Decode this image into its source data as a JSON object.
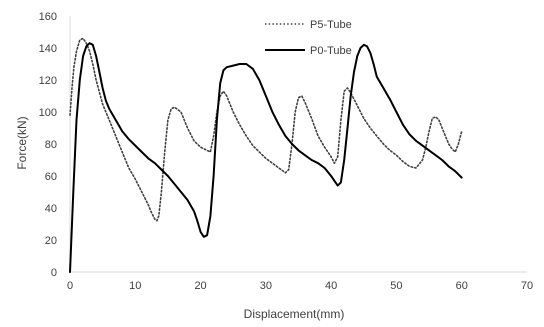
{
  "chart_data": {
    "type": "line",
    "xlabel": "Displacement(mm)",
    "ylabel": "Force(kN)",
    "xlim": [
      0,
      70
    ],
    "ylim": [
      0,
      160
    ],
    "xticks": [
      0,
      10,
      20,
      30,
      40,
      50,
      60,
      70
    ],
    "yticks": [
      0,
      20,
      40,
      60,
      80,
      100,
      120,
      140,
      160
    ],
    "grid": false,
    "legend_position": "top-right",
    "axis_color": "#d9d9d9",
    "series": [
      {
        "name": "P5-Tube",
        "style": "dotted",
        "color": "#404040",
        "x": [
          0,
          0.3,
          0.6,
          1.0,
          1.5,
          2.0,
          2.5,
          3.0,
          3.5,
          4.0,
          5.0,
          6.0,
          7.0,
          8.0,
          9.0,
          10.0,
          11.0,
          12.0,
          12.5,
          13.0,
          13.3,
          13.6,
          14.0,
          14.5,
          15.0,
          15.5,
          16.0,
          17.0,
          18.0,
          19.0,
          20.0,
          21.0,
          21.5,
          22.0,
          22.5,
          23.0,
          23.5,
          24.0,
          25.0,
          26.0,
          27.0,
          28.0,
          29.0,
          30.0,
          31.0,
          32.0,
          33.0,
          33.5,
          34.0,
          34.5,
          35.0,
          35.5,
          36.0,
          37.0,
          38.0,
          39.0,
          40.0,
          40.5,
          41.0,
          41.5,
          42.0,
          42.5,
          43.0,
          44.0,
          45.0,
          46.0,
          47.0,
          48.0,
          49.0,
          50.0,
          51.0,
          52.0,
          53.0,
          54.0,
          54.5,
          55.0,
          55.5,
          56.0,
          56.5,
          57.0,
          57.5,
          58.0,
          58.5,
          59.0,
          59.5,
          60.0
        ],
        "y": [
          98,
          115,
          128,
          138,
          145,
          146,
          143,
          138,
          130,
          120,
          105,
          95,
          85,
          75,
          65,
          58,
          50,
          42,
          37,
          33,
          32,
          35,
          50,
          75,
          95,
          102,
          103,
          100,
          90,
          82,
          78,
          76,
          75,
          85,
          100,
          110,
          113,
          110,
          100,
          92,
          85,
          79,
          75,
          71,
          68,
          65,
          62,
          64,
          80,
          100,
          109,
          110,
          106,
          96,
          85,
          78,
          72,
          68,
          72,
          95,
          113,
          115,
          112,
          104,
          96,
          90,
          85,
          80,
          76,
          73,
          69,
          66,
          65,
          70,
          78,
          88,
          96,
          97,
          95,
          90,
          85,
          80,
          77,
          75,
          80,
          88
        ]
      },
      {
        "name": "P0-Tube",
        "style": "solid",
        "color": "#000000",
        "x": [
          0,
          0.5,
          1.0,
          1.5,
          2.0,
          2.5,
          3.0,
          3.5,
          4.0,
          4.5,
          5.0,
          5.5,
          6.0,
          7.0,
          8.0,
          9.0,
          10.0,
          11.0,
          12.0,
          13.0,
          14.0,
          15.0,
          16.0,
          17.0,
          18.0,
          19.0,
          19.5,
          20.0,
          20.5,
          21.0,
          21.5,
          22.0,
          22.5,
          23.0,
          23.5,
          24.0,
          25.0,
          26.0,
          27.0,
          28.0,
          29.0,
          30.0,
          31.0,
          32.0,
          33.0,
          34.0,
          35.0,
          36.0,
          37.0,
          38.0,
          39.0,
          40.0,
          40.5,
          41.0,
          41.5,
          42.0,
          42.5,
          43.0,
          43.5,
          44.0,
          44.5,
          45.0,
          45.5,
          46.0,
          46.5,
          47.0,
          48.0,
          49.0,
          50.0,
          51.0,
          52.0,
          53.0,
          54.0,
          55.0,
          56.0,
          57.0,
          58.0,
          59.0,
          60.0
        ],
        "y": [
          0,
          50,
          95,
          120,
          135,
          141,
          143,
          142,
          135,
          125,
          115,
          107,
          102,
          95,
          88,
          83,
          79,
          75,
          71,
          68,
          64,
          60,
          55,
          50,
          45,
          38,
          32,
          25,
          22,
          23,
          35,
          60,
          95,
          118,
          126,
          128,
          129,
          130,
          130,
          127,
          120,
          110,
          100,
          92,
          85,
          80,
          76,
          73,
          70,
          68,
          65,
          60,
          57,
          54,
          56,
          70,
          90,
          110,
          125,
          135,
          140,
          142,
          141,
          137,
          130,
          122,
          115,
          108,
          100,
          92,
          86,
          82,
          79,
          76,
          73,
          70,
          66,
          63,
          59
        ]
      }
    ]
  }
}
